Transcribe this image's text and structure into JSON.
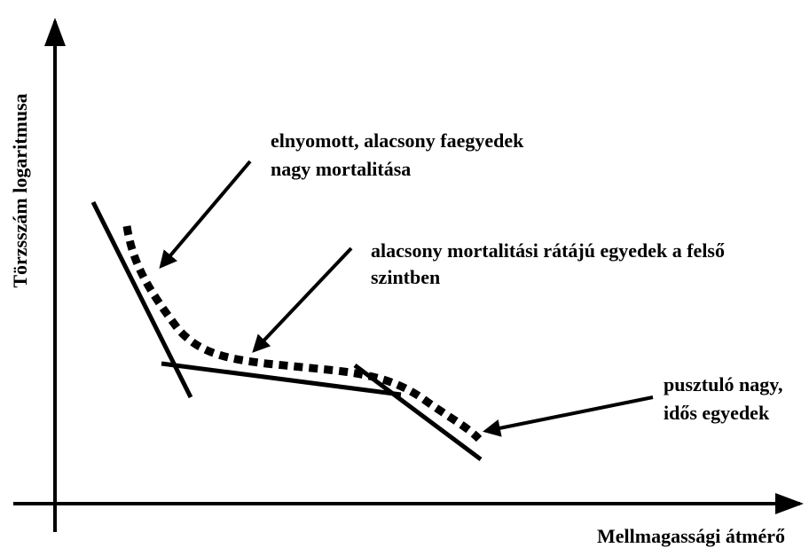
{
  "axes": {
    "y_label": "Törzsszám logaritmusa",
    "x_label": "Mellmagassági átmérő"
  },
  "annotations": [
    {
      "lines": [
        "elnyomott, alacsony faegyedek",
        "nagy mortalitása"
      ]
    },
    {
      "lines": [
        "alacsony mortalitási rátájú egyedek a felső",
        "szintben"
      ]
    },
    {
      "lines": [
        "pusztuló nagy,",
        "idős egyedek"
      ]
    }
  ]
}
